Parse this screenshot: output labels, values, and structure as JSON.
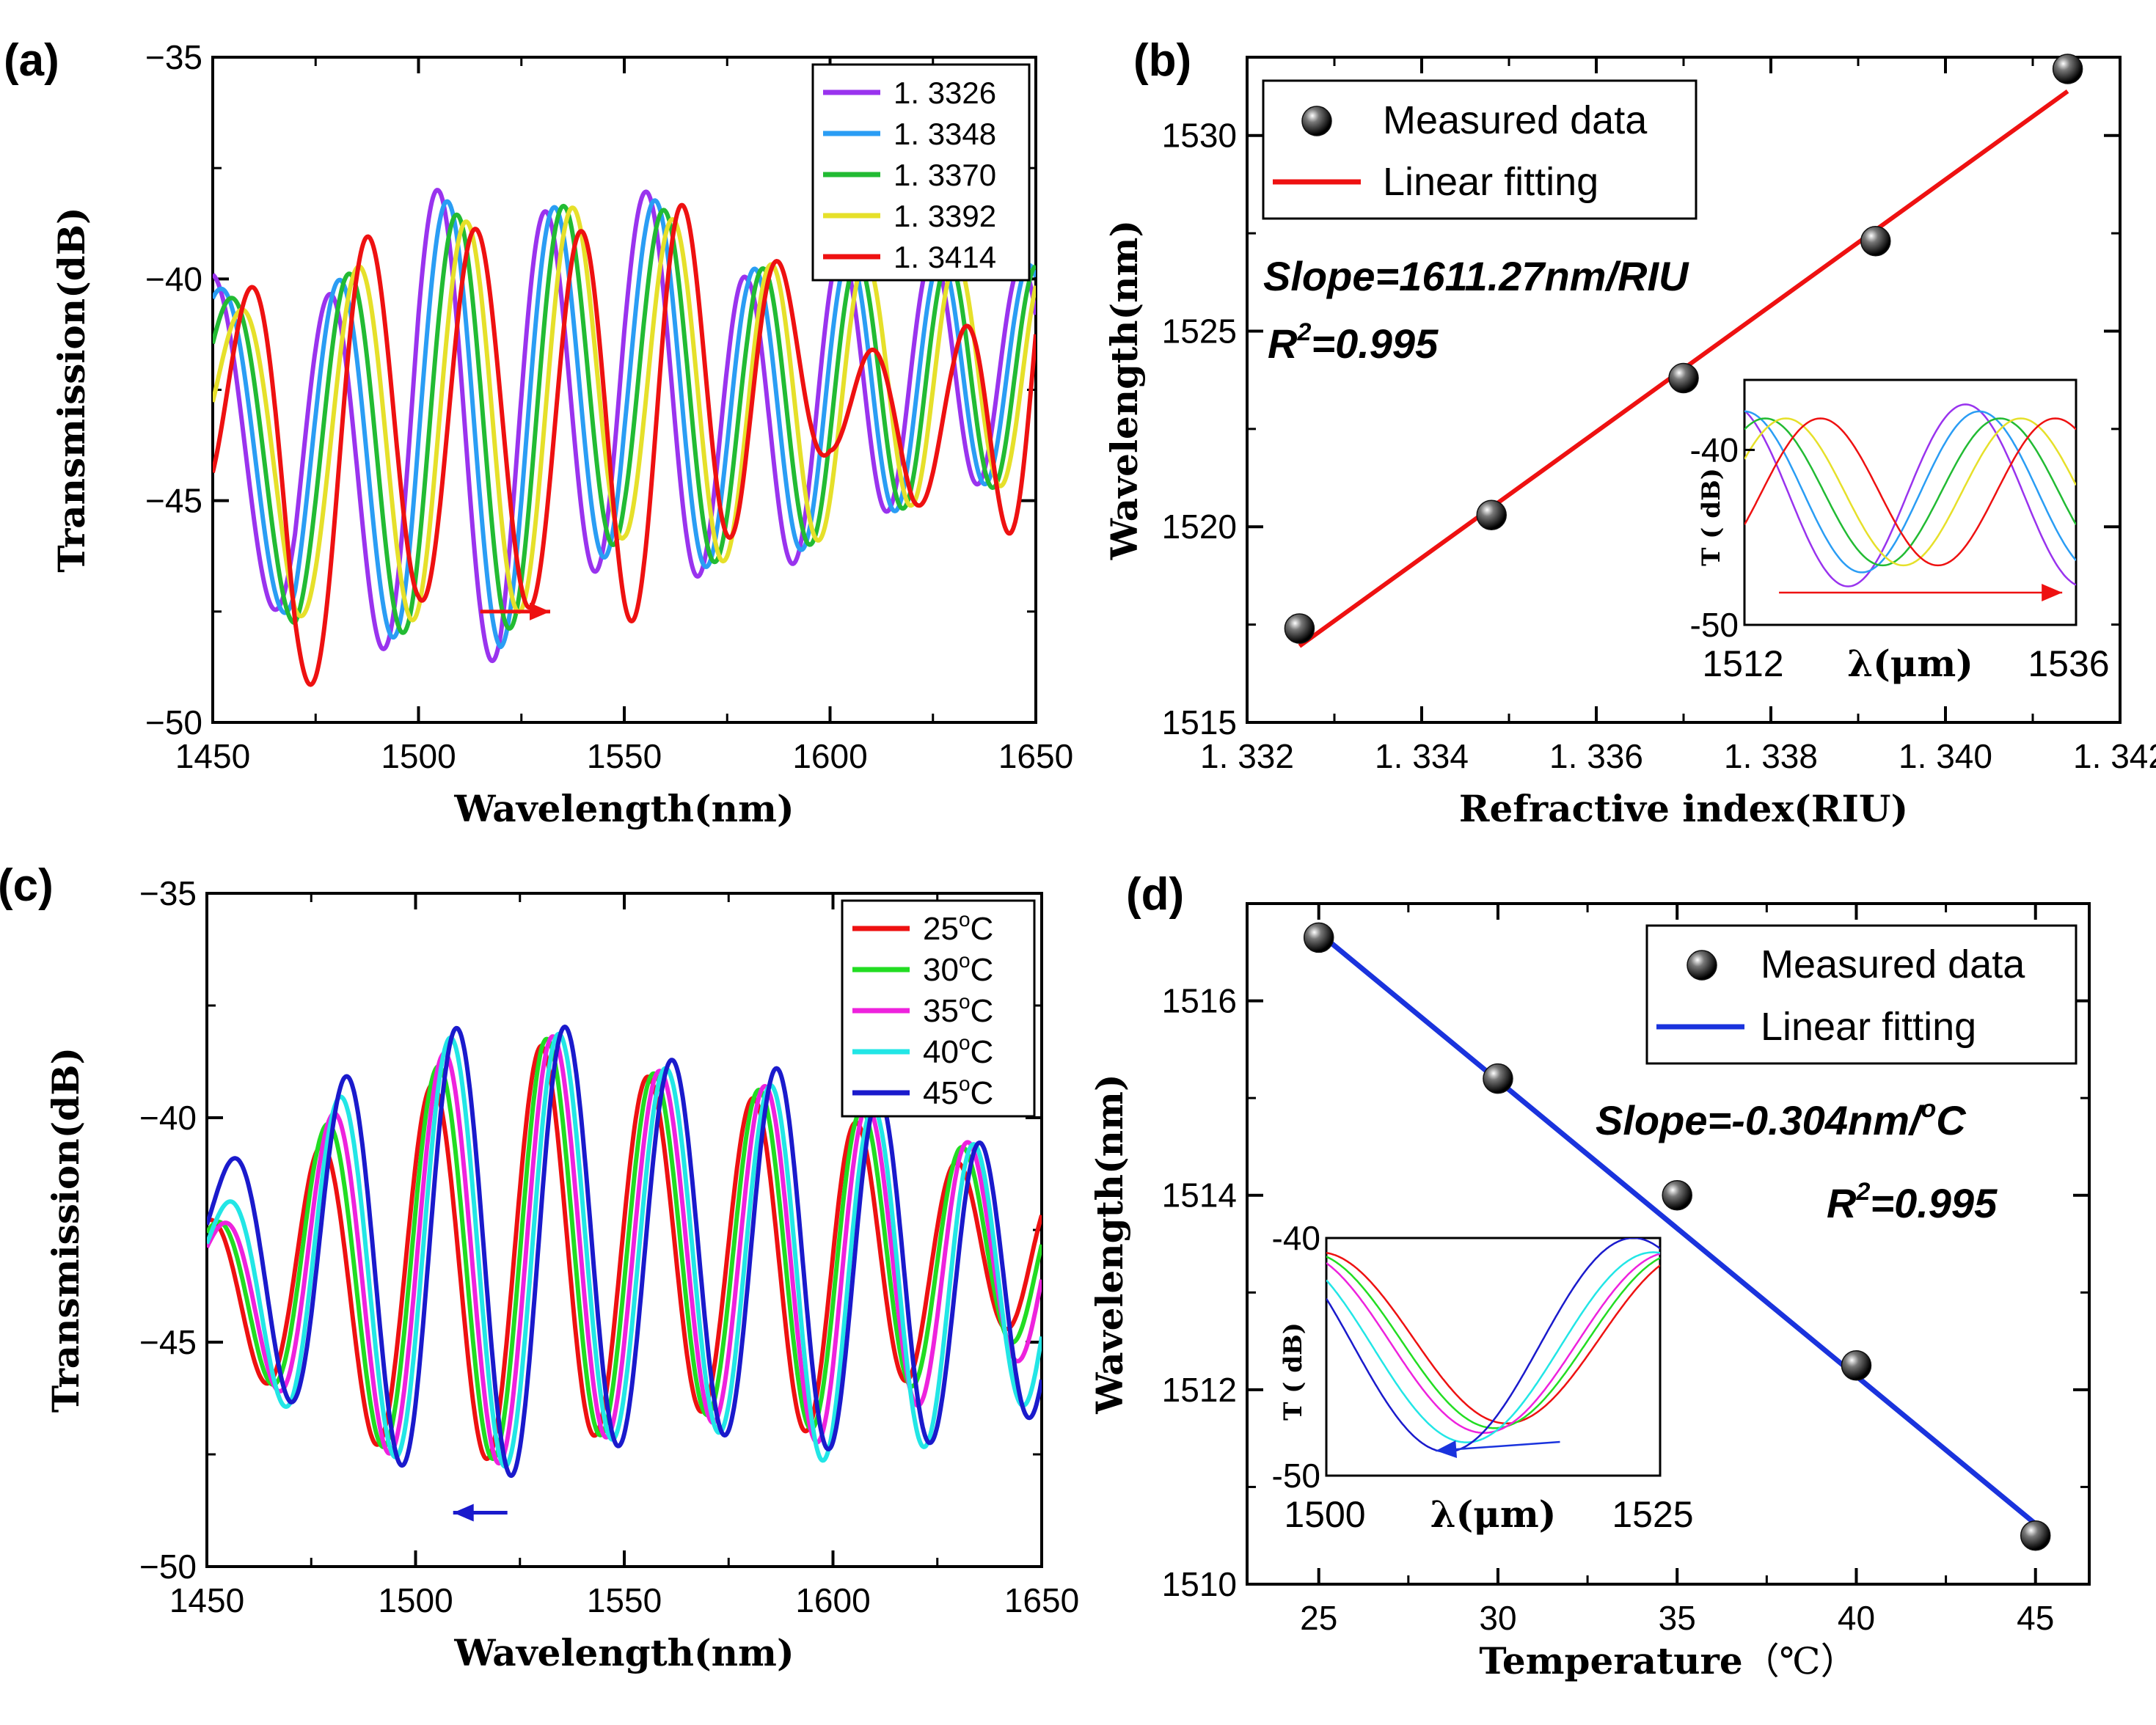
{
  "chart_data": [
    {
      "id": "a",
      "panel_label": "(a)",
      "type": "line",
      "title": "",
      "xlabel": "Wavelength(nm)",
      "ylabel": "Transmission(dB)",
      "xlim": [
        1450,
        1650
      ],
      "ylim": [
        -50,
        -35
      ],
      "xticks": [
        1450,
        1500,
        1550,
        1600,
        1650
      ],
      "xtick_labels": [
        "1450",
        "1500",
        "1550",
        "1600",
        "1650"
      ],
      "yticks": [
        -50,
        -45,
        -40,
        -35
      ],
      "ytick_labels": [
        "−50",
        "−45",
        "−40",
        "−35"
      ],
      "legend_position": "top-right",
      "series": [
        {
          "name": "1. 3326",
          "color": "#9933ee",
          "phase": 0.0,
          "anchors": [
            [
              1450,
              -42.3
            ],
            [
              1470,
              -44.9
            ],
            [
              1500,
              -43.0
            ],
            [
              1520,
              -43.8
            ],
            [
              1550,
              -41.8
            ],
            [
              1580,
              -43.6
            ],
            [
              1600,
              -42.6
            ],
            [
              1620,
              -42.2
            ],
            [
              1650,
              -42.0
            ]
          ],
          "amps": [
            [
              1450,
              2.4
            ],
            [
              1500,
              5.3
            ],
            [
              1540,
              4.4
            ],
            [
              1580,
              3.6
            ],
            [
              1620,
              2.8
            ],
            [
              1650,
              2.3
            ]
          ]
        },
        {
          "name": "1. 3348",
          "color": "#2a9df4",
          "phase": 0.55,
          "anchors": [
            [
              1450,
              -42.4
            ],
            [
              1470,
              -44.6
            ],
            [
              1500,
              -43.0
            ],
            [
              1520,
              -43.6
            ],
            [
              1550,
              -41.8
            ],
            [
              1580,
              -43.3
            ],
            [
              1600,
              -42.6
            ],
            [
              1620,
              -42.3
            ],
            [
              1650,
              -42.0
            ]
          ],
          "amps": [
            [
              1450,
              2.3
            ],
            [
              1500,
              5.1
            ],
            [
              1540,
              4.3
            ],
            [
              1580,
              3.5
            ],
            [
              1620,
              2.8
            ],
            [
              1650,
              2.3
            ]
          ]
        },
        {
          "name": "1. 3370",
          "color": "#22bb33",
          "phase": 1.1,
          "anchors": [
            [
              1450,
              -42.5
            ],
            [
              1470,
              -44.5
            ],
            [
              1500,
              -43.1
            ],
            [
              1520,
              -43.5
            ],
            [
              1550,
              -41.8
            ],
            [
              1580,
              -43.2
            ],
            [
              1600,
              -42.7
            ],
            [
              1620,
              -42.3
            ],
            [
              1650,
              -42.1
            ]
          ],
          "amps": [
            [
              1450,
              2.3
            ],
            [
              1500,
              4.9
            ],
            [
              1540,
              4.2
            ],
            [
              1580,
              3.4
            ],
            [
              1620,
              2.8
            ],
            [
              1650,
              2.4
            ]
          ]
        },
        {
          "name": "1. 3392",
          "color": "#e6e02a",
          "phase": 1.65,
          "anchors": [
            [
              1450,
              -42.6
            ],
            [
              1470,
              -44.4
            ],
            [
              1500,
              -43.0
            ],
            [
              1520,
              -43.4
            ],
            [
              1550,
              -41.9
            ],
            [
              1580,
              -43.1
            ],
            [
              1600,
              -42.7
            ],
            [
              1620,
              -42.3
            ],
            [
              1650,
              -42.1
            ]
          ],
          "amps": [
            [
              1450,
              2.2
            ],
            [
              1500,
              4.7
            ],
            [
              1540,
              4.1
            ],
            [
              1580,
              3.4
            ],
            [
              1620,
              2.8
            ],
            [
              1650,
              2.4
            ]
          ]
        },
        {
          "name": "1. 3414",
          "color": "#ee1111",
          "phase": 2.2,
          "anchors": [
            [
              1450,
              -42.6
            ],
            [
              1470,
              -45.0
            ],
            [
              1500,
              -42.8
            ],
            [
              1520,
              -43.2
            ],
            [
              1550,
              -43.3
            ],
            [
              1580,
              -42.0
            ],
            [
              1600,
              -42.6
            ],
            [
              1620,
              -43.5
            ],
            [
              1650,
              -42.6
            ]
          ],
          "amps": [
            [
              1450,
              3.0
            ],
            [
              1480,
              4.8
            ],
            [
              1520,
              4.1
            ],
            [
              1560,
              4.6
            ],
            [
              1580,
              3.4
            ],
            [
              1600,
              1.3
            ],
            [
              1630,
              1.8
            ],
            [
              1650,
              3.5
            ]
          ]
        }
      ]
    },
    {
      "id": "b",
      "panel_label": "(b)",
      "type": "scatter",
      "title": "",
      "xlabel": "Refractive index(RIU)",
      "ylabel": "Wavelength(nm)",
      "xlim": [
        1.332,
        1.342
      ],
      "ylim": [
        1515,
        1532
      ],
      "xticks": [
        1.332,
        1.334,
        1.336,
        1.338,
        1.34,
        1.342
      ],
      "xtick_labels": [
        "1. 332",
        "1. 334",
        "1. 336",
        "1. 338",
        "1. 340",
        "1. 342"
      ],
      "yticks": [
        1515,
        1520,
        1525,
        1530
      ],
      "ytick_labels": [
        "1515",
        "1520",
        "1525",
        "1530"
      ],
      "series": [
        {
          "name": "Measured data",
          "x": [
            1.3326,
            1.3348,
            1.337,
            1.3392,
            1.3414
          ],
          "y": [
            1517.4,
            1520.3,
            1523.8,
            1527.3,
            1531.7
          ]
        }
      ],
      "fit": {
        "name": "Linear fitting",
        "color": "#ee1111",
        "x": [
          1.3326,
          1.3414
        ],
        "y": [
          1516.95,
          1531.13
        ]
      },
      "annotations": {
        "slope": "Slope=1611.27nm/RIU",
        "r2_prefix": "R",
        "r2_sup": "2",
        "r2_value": "=0.995"
      },
      "legend_position": "top-left",
      "inset": {
        "xlabel": "λ(μm)",
        "ylabel": "T ( dB)",
        "xlim": [
          1512,
          1536
        ],
        "ylim": [
          -50,
          -36
        ],
        "xtick_labels": [
          "1512",
          "1536"
        ],
        "ytick_labels": [
          "-40",
          "-50"
        ],
        "arrow_color": "#ee1111",
        "series": [
          {
            "name": "1. 3326",
            "color": "#9933ee",
            "min_x": 1519.5,
            "min_y": -47.8,
            "period": 17,
            "amp": 5.2
          },
          {
            "name": "1. 3348",
            "color": "#2a9df4",
            "min_x": 1520.5,
            "min_y": -47.0,
            "period": 17,
            "amp": 4.6
          },
          {
            "name": "1. 3370",
            "color": "#22bb33",
            "min_x": 1522.0,
            "min_y": -46.6,
            "period": 17,
            "amp": 4.2
          },
          {
            "name": "1. 3392",
            "color": "#e6e02a",
            "min_x": 1523.5,
            "min_y": -46.6,
            "period": 17,
            "amp": 4.2
          },
          {
            "name": "1. 3414",
            "color": "#ee1111",
            "min_x": 1526.0,
            "min_y": -46.6,
            "period": 17,
            "amp": 4.2
          }
        ]
      }
    },
    {
      "id": "c",
      "panel_label": "(c)",
      "type": "line",
      "title": "",
      "xlabel": "Wavelength(nm)",
      "ylabel": "Transmission(dB)",
      "xlim": [
        1450,
        1650
      ],
      "ylim": [
        -50,
        -35
      ],
      "xticks": [
        1450,
        1500,
        1550,
        1600,
        1650
      ],
      "xtick_labels": [
        "1450",
        "1500",
        "1550",
        "1600",
        "1650"
      ],
      "yticks": [
        -50,
        -45,
        -40,
        -35
      ],
      "ytick_labels": [
        "−50",
        "−45",
        "−40",
        "−35"
      ],
      "legend_position": "top-right",
      "series": [
        {
          "name": "25℃",
          "label_main": "25",
          "label_sup": "o",
          "label_unit": "C",
          "color": "#ee1111",
          "phase": 0.0,
          "anchors": [
            [
              1450,
              -43.5
            ],
            [
              1470,
              -43.8
            ],
            [
              1500,
              -43.5
            ],
            [
              1530,
              -43.0
            ],
            [
              1560,
              -42.8
            ],
            [
              1600,
              -43.5
            ],
            [
              1630,
              -43.0
            ],
            [
              1650,
              -43.0
            ]
          ],
          "amps": [
            [
              1450,
              1.2
            ],
            [
              1475,
              3.0
            ],
            [
              1500,
              4.1
            ],
            [
              1530,
              4.6
            ],
            [
              1560,
              3.6
            ],
            [
              1600,
              3.6
            ],
            [
              1630,
              2.0
            ],
            [
              1650,
              1.5
            ]
          ]
        },
        {
          "name": "30℃",
          "label_main": "30",
          "label_sup": "o",
          "label_unit": "C",
          "color": "#22dd22",
          "phase": 0.35,
          "anchors": [
            [
              1450,
              -43.5
            ],
            [
              1470,
              -43.6
            ],
            [
              1500,
              -43.3
            ],
            [
              1530,
              -42.9
            ],
            [
              1560,
              -42.8
            ],
            [
              1600,
              -43.3
            ],
            [
              1630,
              -43.0
            ],
            [
              1650,
              -43.2
            ]
          ],
          "amps": [
            [
              1450,
              1.0
            ],
            [
              1475,
              3.2
            ],
            [
              1500,
              4.3
            ],
            [
              1530,
              4.7
            ],
            [
              1560,
              3.7
            ],
            [
              1600,
              3.7
            ],
            [
              1630,
              2.4
            ],
            [
              1650,
              1.6
            ]
          ]
        },
        {
          "name": "35℃",
          "label_main": "35",
          "label_sup": "o",
          "label_unit": "C",
          "color": "#ee22dd",
          "phase": 0.7,
          "anchors": [
            [
              1450,
              -43.5
            ],
            [
              1470,
              -43.6
            ],
            [
              1500,
              -43.2
            ],
            [
              1530,
              -42.9
            ],
            [
              1560,
              -42.8
            ],
            [
              1600,
              -43.4
            ],
            [
              1630,
              -43.2
            ],
            [
              1650,
              -43.4
            ]
          ],
          "amps": [
            [
              1450,
              0.8
            ],
            [
              1475,
              3.3
            ],
            [
              1500,
              4.5
            ],
            [
              1530,
              4.8
            ],
            [
              1560,
              3.8
            ],
            [
              1600,
              3.9
            ],
            [
              1630,
              2.8
            ],
            [
              1650,
              1.8
            ]
          ]
        },
        {
          "name": "40℃",
          "label_main": "40",
          "label_sup": "o",
          "label_unit": "C",
          "color": "#22e6e6",
          "phase": 1.05,
          "anchors": [
            [
              1450,
              -43.3
            ],
            [
              1470,
              -43.6
            ],
            [
              1500,
              -43.0
            ],
            [
              1530,
              -42.9
            ],
            [
              1560,
              -42.8
            ],
            [
              1600,
              -43.6
            ],
            [
              1630,
              -43.8
            ],
            [
              1650,
              -43.8
            ]
          ],
          "amps": [
            [
              1450,
              1.0
            ],
            [
              1475,
              3.5
            ],
            [
              1500,
              4.7
            ],
            [
              1530,
              4.9
            ],
            [
              1560,
              3.9
            ],
            [
              1600,
              4.1
            ],
            [
              1630,
              3.4
            ],
            [
              1650,
              2.4
            ]
          ]
        },
        {
          "name": "45℃",
          "label_main": "45",
          "label_sup": "o",
          "label_unit": "C",
          "color": "#1a1acc",
          "phase": 1.4,
          "anchors": [
            [
              1450,
              -42.6
            ],
            [
              1470,
              -43.2
            ],
            [
              1500,
              -43.0
            ],
            [
              1530,
              -42.9
            ],
            [
              1560,
              -42.8
            ],
            [
              1600,
              -43.2
            ],
            [
              1630,
              -43.8
            ],
            [
              1650,
              -43.8
            ]
          ],
          "amps": [
            [
              1450,
              1.3
            ],
            [
              1475,
              3.6
            ],
            [
              1500,
              4.9
            ],
            [
              1530,
              5.1
            ],
            [
              1560,
              4.1
            ],
            [
              1600,
              4.2
            ],
            [
              1630,
              3.4
            ],
            [
              1650,
              2.8
            ]
          ]
        }
      ]
    },
    {
      "id": "d",
      "panel_label": "(d)",
      "type": "scatter",
      "title": "",
      "xlabel": "Temperature",
      "xlabel_unit": "（℃）",
      "ylabel": "Wavelength(nm)",
      "xlim": [
        23,
        46.5
      ],
      "ylim": [
        1510,
        1517
      ],
      "xticks": [
        25,
        30,
        35,
        40,
        45
      ],
      "xtick_labels": [
        "25",
        "30",
        "35",
        "40",
        "45"
      ],
      "yticks": [
        1510,
        1512,
        1514,
        1516
      ],
      "ytick_labels": [
        "1510",
        "1512",
        "1514",
        "1516"
      ],
      "series": [
        {
          "name": "Measured data",
          "x": [
            25,
            30,
            35,
            40,
            45
          ],
          "y": [
            1516.65,
            1515.2,
            1514.0,
            1512.25,
            1510.5
          ]
        }
      ],
      "fit": {
        "name": "Linear fitting",
        "color": "#1a33dd",
        "x": [
          25,
          45
        ],
        "y": [
          1516.7,
          1510.62
        ]
      },
      "annotations": {
        "slope": "Slope=-0.304nm/",
        "slope_sup": "o",
        "slope_unit": "C",
        "r2_prefix": "R",
        "r2_sup": "2",
        "r2_value": "=0.995"
      },
      "legend_position": "top-right",
      "inset": {
        "xlabel": "λ(μm)",
        "ylabel": "T ( dB)",
        "xlim": [
          1500,
          1525
        ],
        "ylim": [
          -50,
          -40
        ],
        "xtick_labels": [
          "1500",
          "1525"
        ],
        "ytick_labels": [
          "-40",
          "-50"
        ],
        "arrow_color": "#1a33dd",
        "series": [
          {
            "name": "25℃",
            "color": "#ee1111",
            "min_x": 1513.5,
            "min_y": -47.8,
            "period": 28,
            "amp": 3.6
          },
          {
            "name": "30℃",
            "color": "#22dd22",
            "min_x": 1512.6,
            "min_y": -48.0,
            "period": 28,
            "amp": 3.7
          },
          {
            "name": "35℃",
            "color": "#ee22dd",
            "min_x": 1511.8,
            "min_y": -48.2,
            "period": 28,
            "amp": 3.8
          },
          {
            "name": "40℃",
            "color": "#22e6e6",
            "min_x": 1510.5,
            "min_y": -48.6,
            "period": 28,
            "amp": 4.0
          },
          {
            "name": "45℃",
            "color": "#1a1acc",
            "min_x": 1509.0,
            "min_y": -49.0,
            "period": 28,
            "amp": 4.5
          }
        ]
      }
    }
  ]
}
